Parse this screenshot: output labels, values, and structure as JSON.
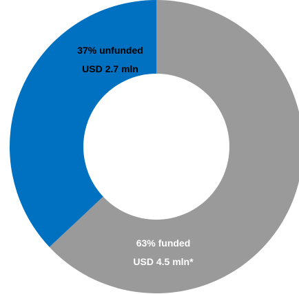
{
  "chart_data": {
    "type": "pie",
    "donut": true,
    "start_angle": "12 o'clock, clockwise",
    "slices": [
      {
        "id": "funded",
        "value": 63,
        "color": "#9a9a9a",
        "label_line1": "63% funded",
        "label_line2": "USD 4.5 mln*",
        "label_color": "#ffffff"
      },
      {
        "id": "unfunded",
        "value": 37,
        "color": "#0070c0",
        "label_line1": "37% unfunded",
        "label_line2": "USD 2.7 mln",
        "label_color": "#000000"
      }
    ]
  }
}
